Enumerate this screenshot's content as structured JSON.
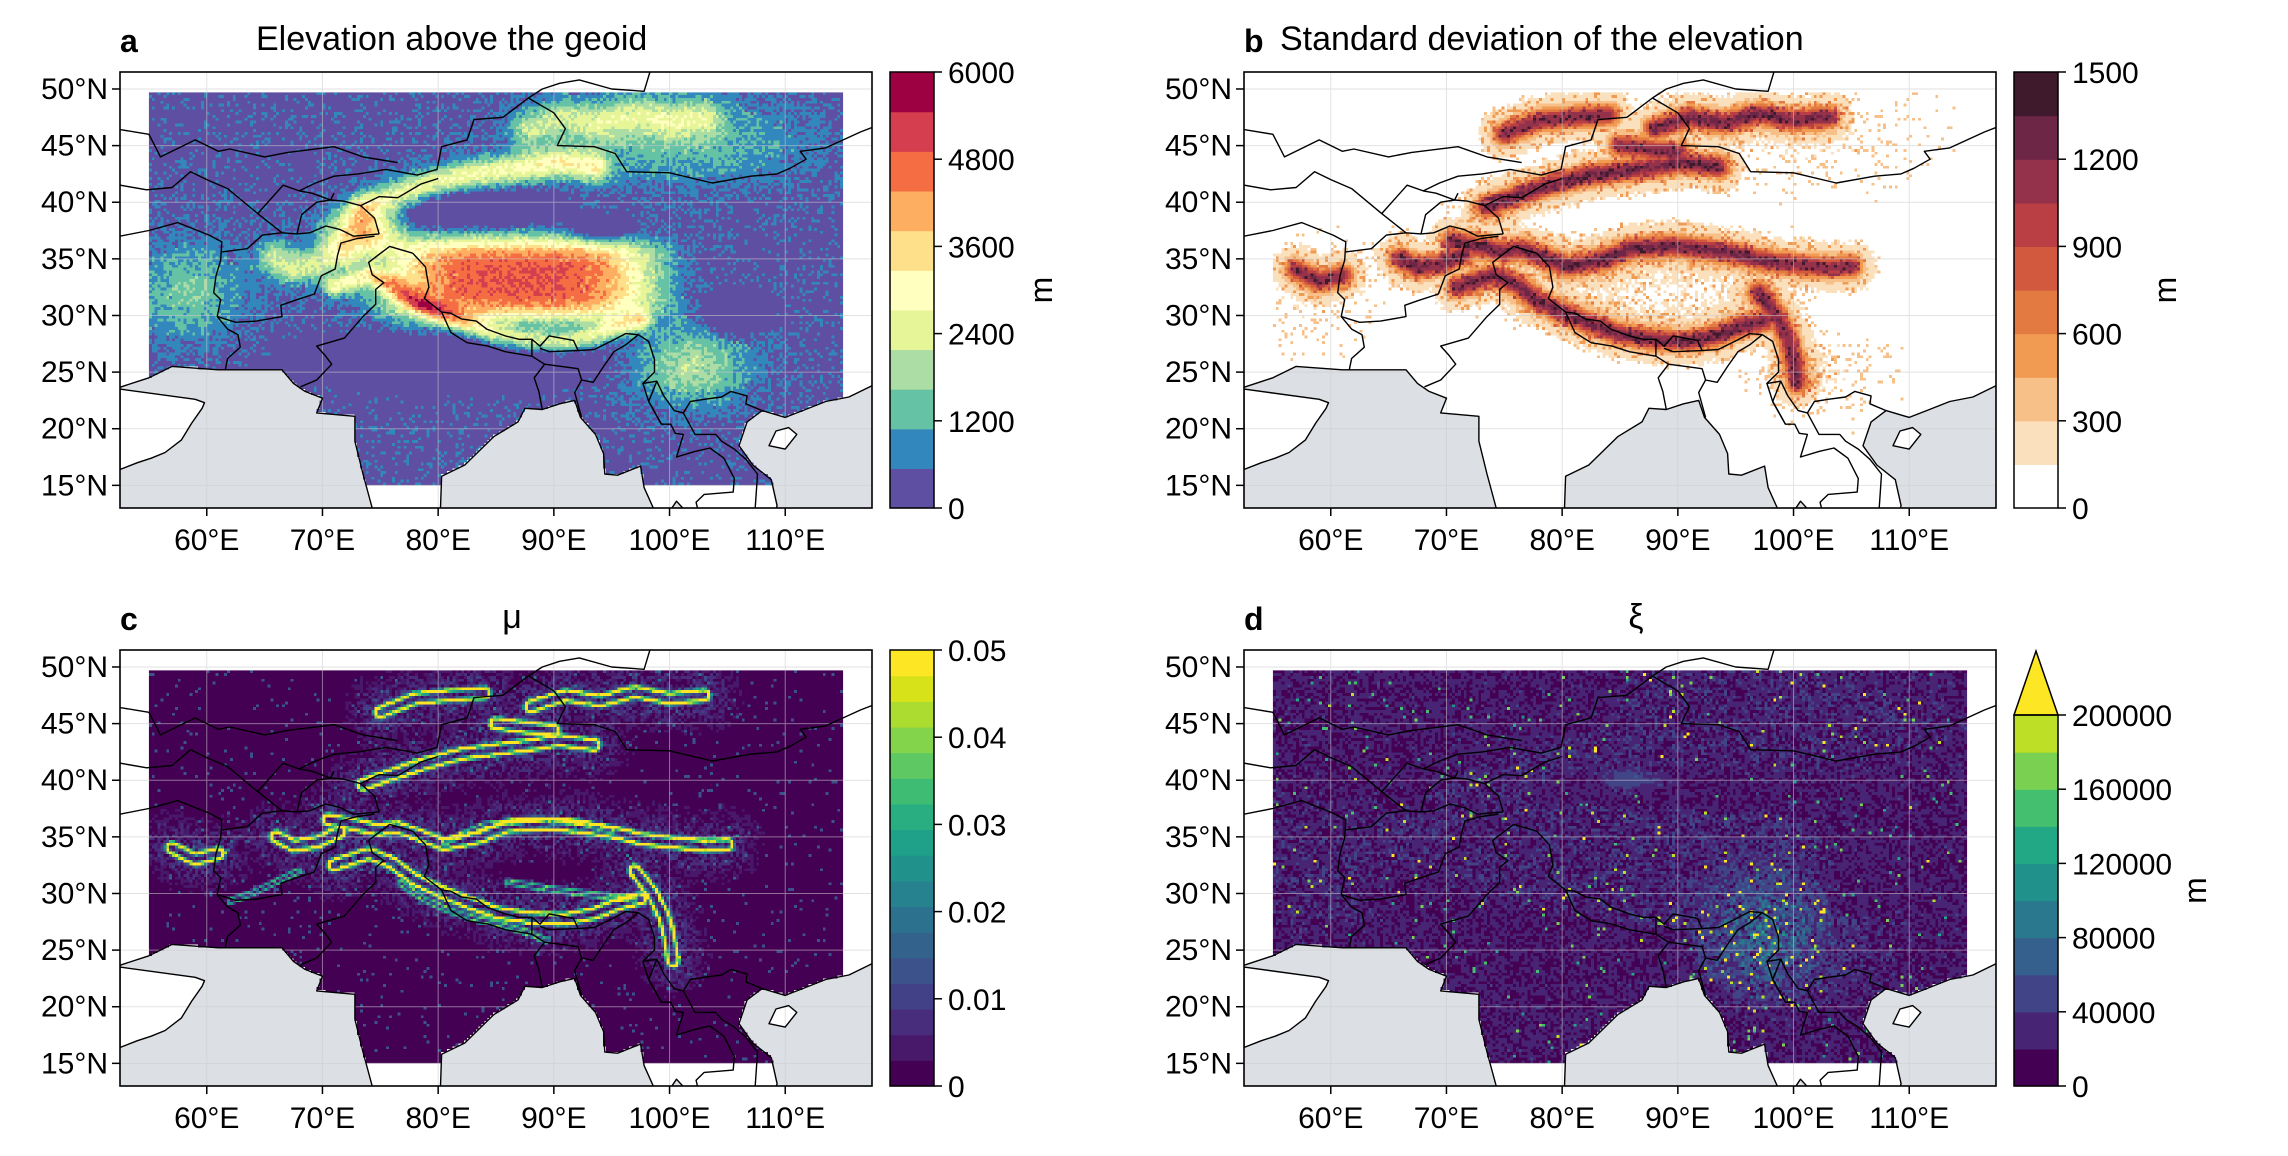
{
  "panels": [
    {
      "letter": "a",
      "title": "Elevation above the geoid",
      "colormap": "spectral",
      "field": "elevation",
      "colorbar": {
        "ticks": [
          "0",
          "1200",
          "2400",
          "3600",
          "4800",
          "6000"
        ],
        "unit": "m",
        "extend_max": false,
        "colors": [
          "#5e4fa2",
          "#3288bd",
          "#66c2a5",
          "#abdda4",
          "#e6f598",
          "#ffffbf",
          "#fee08b",
          "#fdae61",
          "#f46d43",
          "#d53e4f",
          "#9e0142"
        ]
      }
    },
    {
      "letter": "b",
      "title": "Standard deviation of the elevation",
      "colormap": "orrd",
      "field": "stddev",
      "colorbar": {
        "ticks": [
          "0",
          "300",
          "600",
          "900",
          "1200",
          "1500"
        ],
        "unit": "m",
        "extend_max": false,
        "colors": [
          "#ffffff",
          "#fbe0bd",
          "#f7c089",
          "#f09a52",
          "#e27a42",
          "#d2583e",
          "#b93f45",
          "#94314b",
          "#6d2646",
          "#3f1a2c"
        ]
      }
    },
    {
      "letter": "c",
      "title": "μ",
      "colormap": "viridis",
      "field": "mu",
      "colorbar": {
        "ticks": [
          "0",
          "0.01",
          "0.02",
          "0.03",
          "0.04",
          "0.05"
        ],
        "unit": "",
        "extend_max": false,
        "colors": [
          "#440154",
          "#48186a",
          "#472d7b",
          "#424086",
          "#3b528b",
          "#33638d",
          "#2c728e",
          "#26828e",
          "#21918c",
          "#1fa088",
          "#28ae80",
          "#3fbc73",
          "#5ec962",
          "#84d44b",
          "#addc30",
          "#d8e219",
          "#fde725"
        ]
      }
    },
    {
      "letter": "d",
      "title": "ξ",
      "colormap": "viridis",
      "field": "xi",
      "colorbar": {
        "ticks": [
          "0",
          "40000",
          "80000",
          "120000",
          "160000",
          "200000"
        ],
        "unit": "m",
        "extend_max": true,
        "colors": [
          "#440154",
          "#482475",
          "#414487",
          "#355f8d",
          "#2a788e",
          "#21918c",
          "#22a884",
          "#44bf70",
          "#7ad151",
          "#bddf26",
          "#fde725"
        ]
      }
    }
  ],
  "lat_ticks": [
    "50°N",
    "45°N",
    "40°N",
    "35°N",
    "30°N",
    "25°N",
    "20°N",
    "15°N"
  ],
  "lon_ticks": [
    "60°E",
    "70°E",
    "80°E",
    "90°E",
    "100°E",
    "110°E"
  ],
  "colors": {
    "ocean": "#dcdfe4",
    "border": "#000000",
    "grid": "#cccccc"
  }
}
